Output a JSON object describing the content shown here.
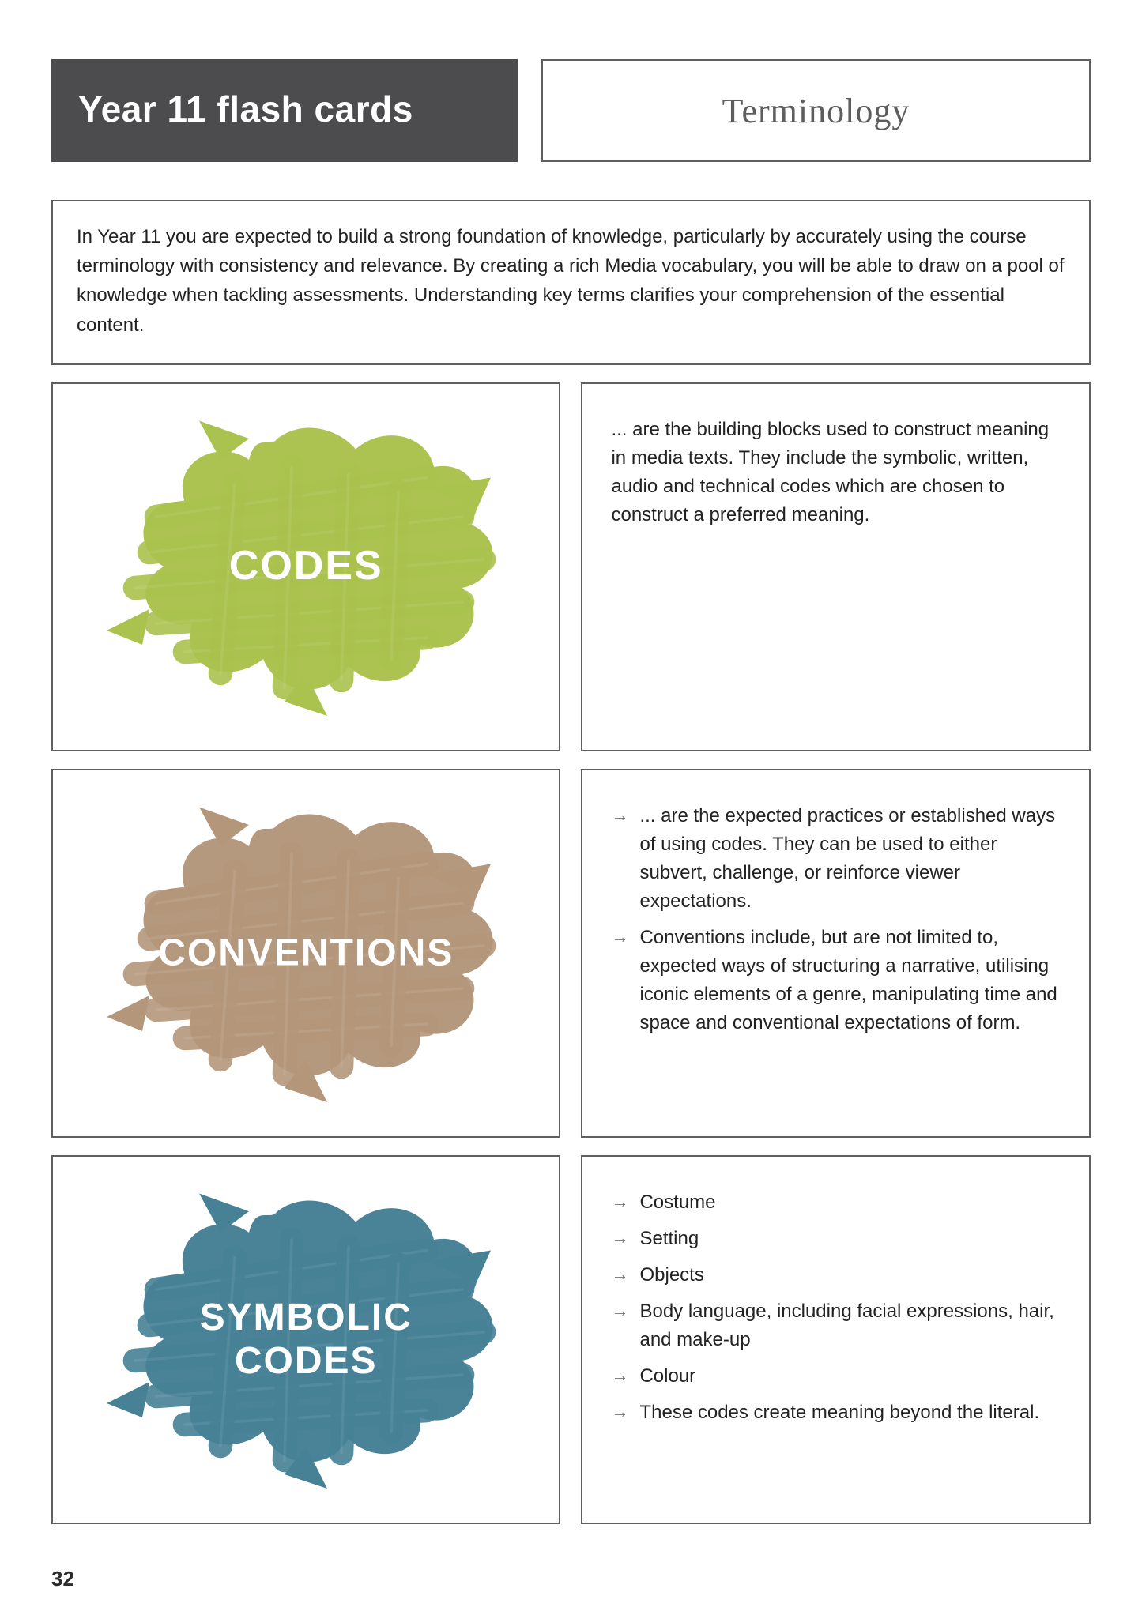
{
  "page_number": "32",
  "header": {
    "title": "Year 11 flash cards",
    "subtitle": "Terminology"
  },
  "intro": "In Year 11 you are expected to build a strong foundation of knowledge, particularly by accurately using the course terminology with consistency and relevance. By creating a rich Media vocabulary, you will be able to draw on a pool of knowledge when tackling assessments. Understanding key terms clarifies your comprehension of the essential content.",
  "colors": {
    "title_bg": "#4c4c4e",
    "border": "#606060",
    "text": "#2b2b2b"
  },
  "cards": [
    {
      "term": "CODES",
      "splat_color": "#aac24e",
      "label_fontsize": 52,
      "definition_type": "paragraph",
      "paragraph": "... are the building blocks used to construct meaning in media texts. They include the symbolic, written, audio and technical codes which are chosen to construct a preferred meaning."
    },
    {
      "term": "CONVENTIONS",
      "splat_color": "#b4977b",
      "label_fontsize": 48,
      "definition_type": "bullets",
      "bullets": [
        "... are the expected practices or established ways of using codes. They can be used to either subvert, challenge, or reinforce viewer expectations.",
        "Conventions include, but are not limited to, expected ways of structuring a narrative, utilising iconic elements of a genre, manipulating time and space and conventional expectations of form."
      ]
    },
    {
      "term": "SYMBOLIC\nCODES",
      "splat_color": "#468196",
      "label_fontsize": 48,
      "definition_type": "bullets",
      "bullets": [
        "Costume",
        "Setting",
        "Objects",
        "Body language, including facial expressions, hair, and make-up",
        "Colour",
        "These codes create meaning beyond the literal."
      ]
    }
  ]
}
